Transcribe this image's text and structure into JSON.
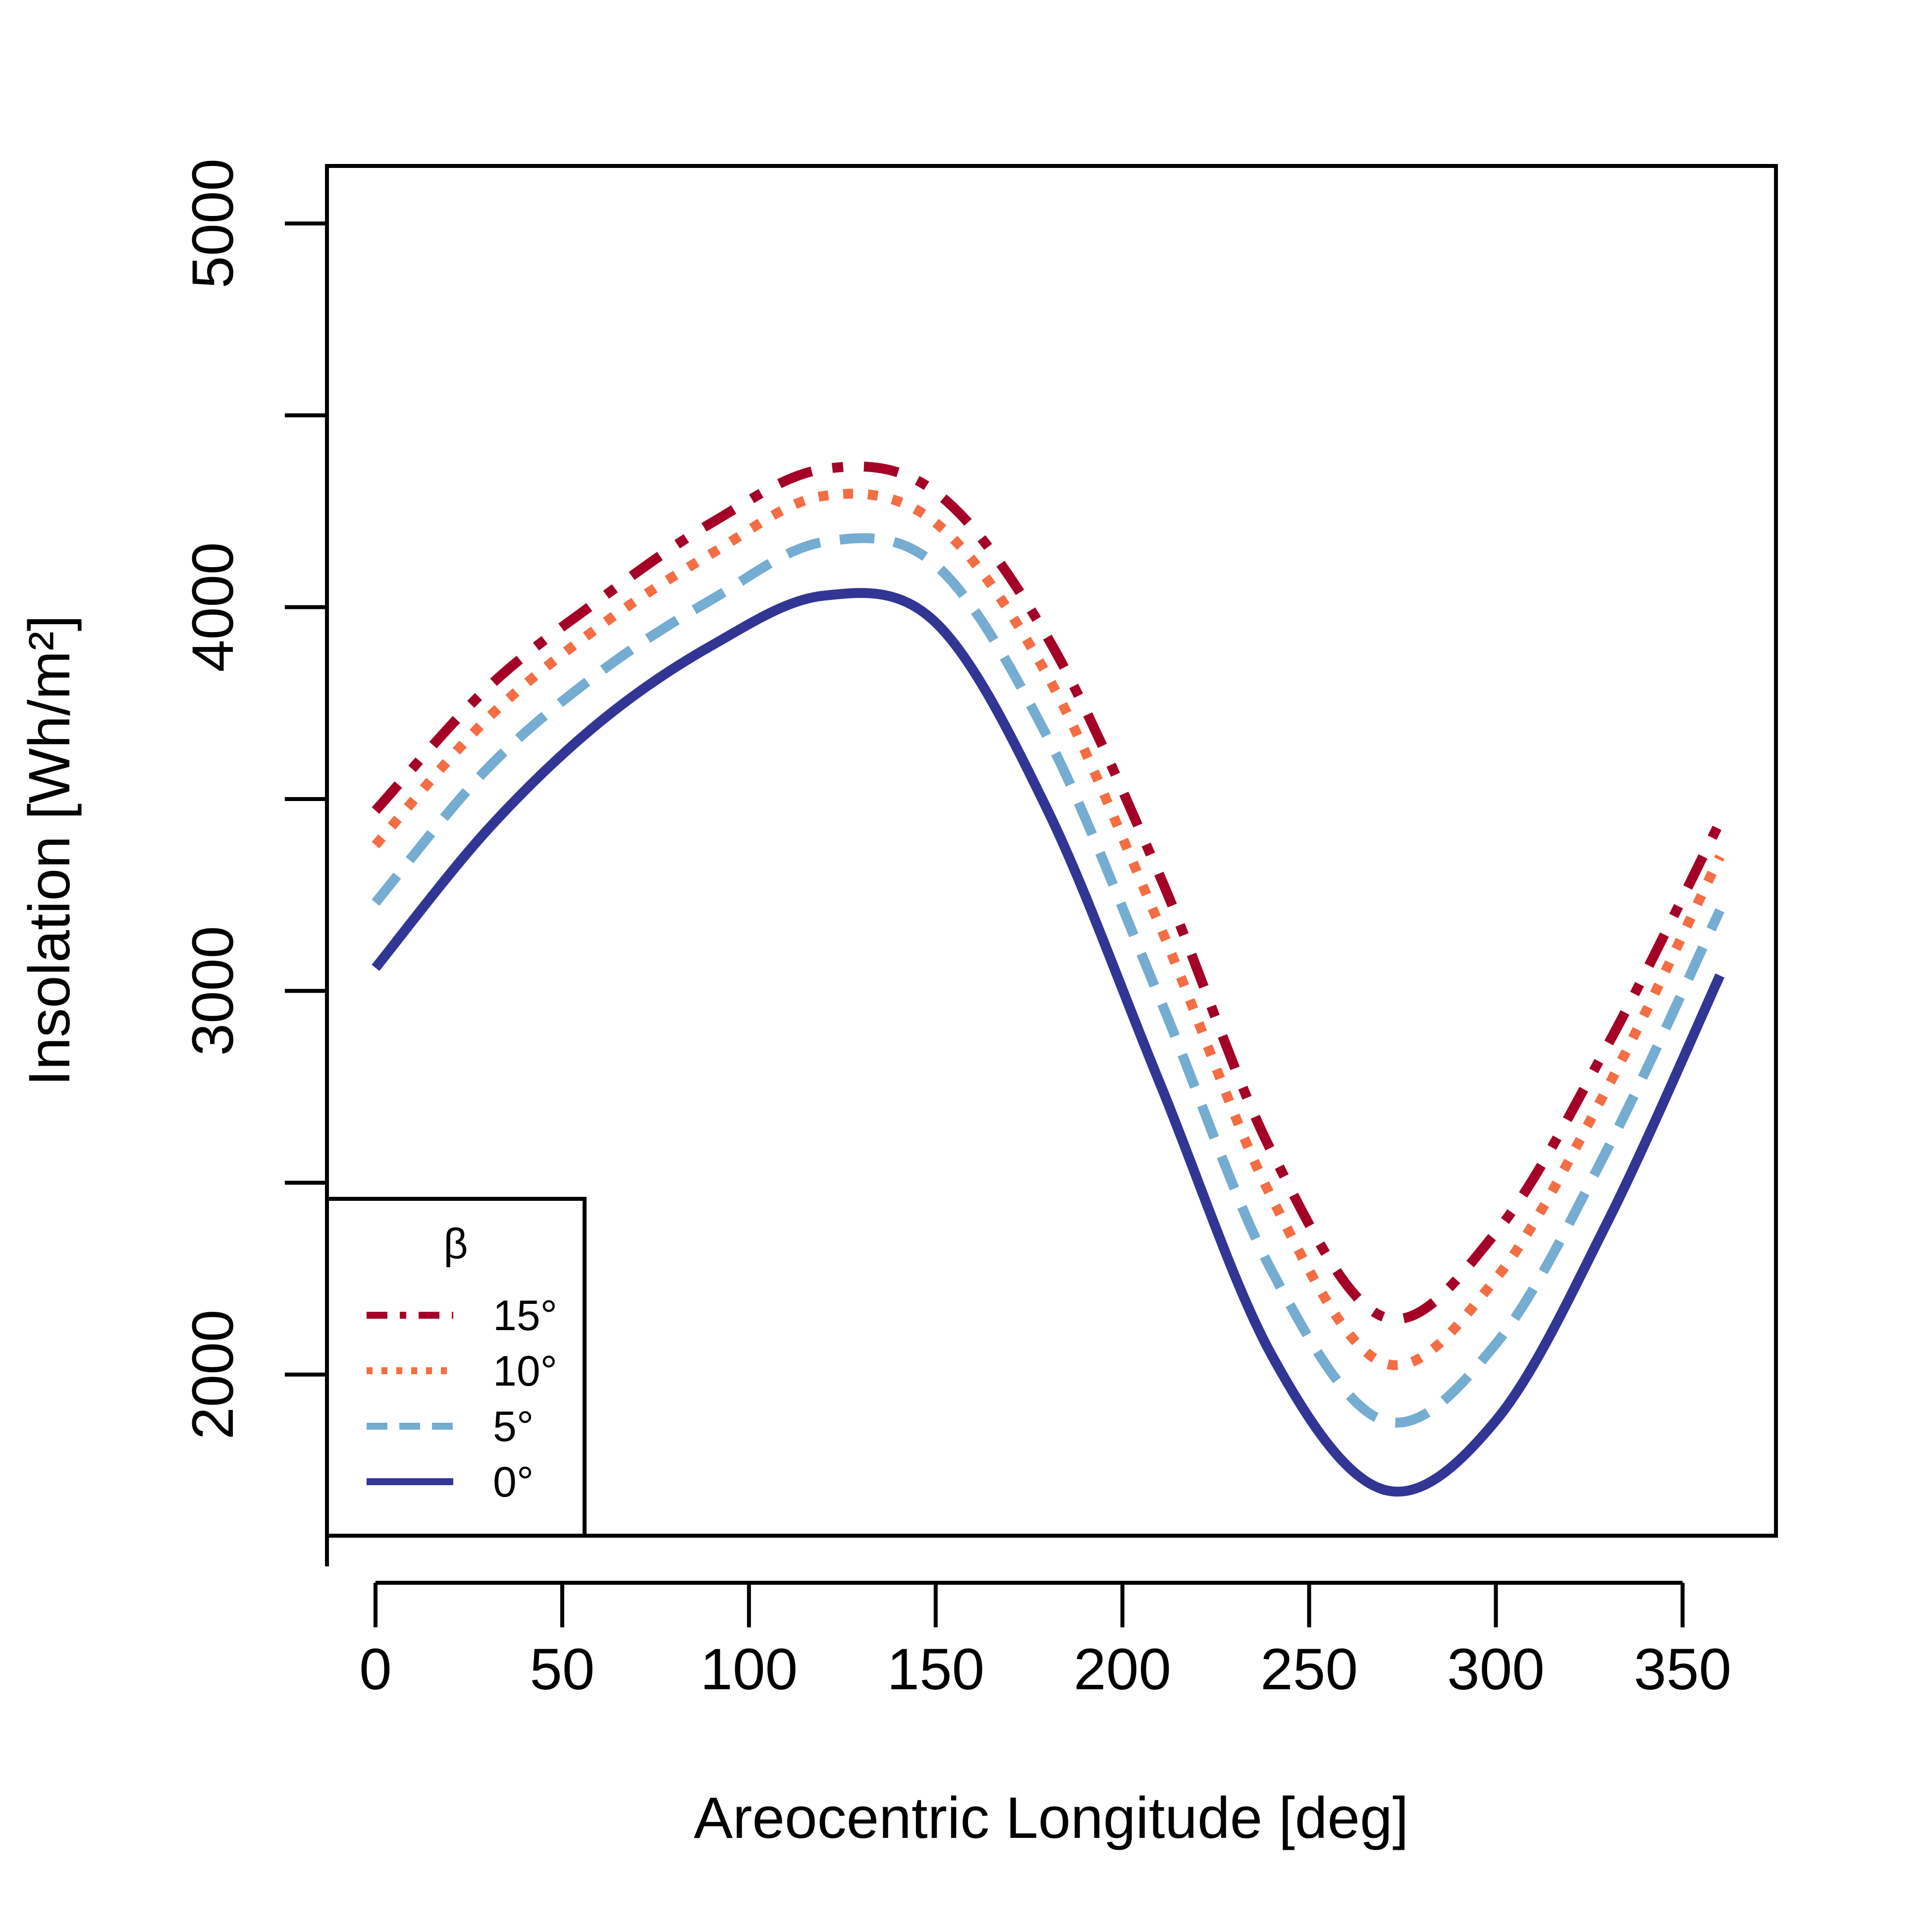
{
  "chart_data": {
    "type": "line",
    "title": "",
    "xlabel": "Areocentric Longitude [deg]",
    "ylabel": "Insolation [Wh/m²]",
    "xlim": [
      -13,
      375
    ],
    "ylim": [
      1580,
      5150
    ],
    "xticks": [
      0,
      50,
      100,
      150,
      200,
      250,
      300,
      350
    ],
    "yticks": [
      2000,
      3000,
      4000,
      5000
    ],
    "xtick_labels": [
      "0",
      "50",
      "100",
      "150",
      "200",
      "250",
      "300",
      "350"
    ],
    "ytick_labels": [
      "2000",
      "3000",
      "4000",
      "5000"
    ],
    "grid": false,
    "legend": {
      "title": "β",
      "position": "bottom-left",
      "entries": [
        "15°",
        "10°",
        "5°",
        "0°"
      ]
    },
    "x": [
      0,
      30,
      60,
      90,
      120,
      150,
      180,
      210,
      240,
      270,
      300,
      330,
      360
    ],
    "series": [
      {
        "name": "15°",
        "color": "#a50026",
        "dash": "long-short",
        "values": [
          3470,
          3790,
          4020,
          4220,
          4360,
          4300,
          3920,
          3300,
          2580,
          2150,
          2370,
          2860,
          3440
        ]
      },
      {
        "name": "10°",
        "color": "#f46d43",
        "dash": "dotted",
        "values": [
          3380,
          3710,
          3950,
          4140,
          4290,
          4220,
          3820,
          3170,
          2460,
          2030,
          2250,
          2750,
          3350
        ]
      },
      {
        "name": "5°",
        "color": "#74add1",
        "dash": "dashed",
        "values": [
          3230,
          3580,
          3830,
          4020,
          4170,
          4110,
          3660,
          2980,
          2270,
          1880,
          2080,
          2590,
          3210
        ]
      },
      {
        "name": "0°",
        "color": "#313695",
        "dash": "solid",
        "values": [
          3060,
          3420,
          3700,
          3900,
          4030,
          3960,
          3470,
          2760,
          2050,
          1700,
          1880,
          2400,
          3040
        ]
      }
    ]
  }
}
